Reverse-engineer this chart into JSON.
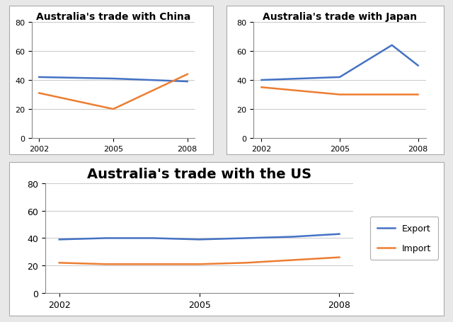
{
  "china": {
    "title": "Australia's trade with China",
    "years": [
      2002,
      2005,
      2008
    ],
    "export": [
      42,
      41,
      39
    ],
    "import": [
      31,
      20,
      44
    ],
    "export_color": "#4472C4",
    "import_color": "#ED7D31",
    "ylim": [
      0,
      80
    ],
    "yticks": [
      0,
      20,
      40,
      60,
      80
    ],
    "xticks": [
      2002,
      2005,
      2008
    ]
  },
  "japan": {
    "title": "Australia's trade with Japan",
    "years": [
      2002,
      2005,
      2007,
      2008
    ],
    "export": [
      40,
      42,
      64,
      50
    ],
    "import": [
      35,
      30,
      30,
      30
    ],
    "export_color": "#4472C4",
    "import_color": "#ED7D31",
    "ylim": [
      0,
      80
    ],
    "yticks": [
      0,
      20,
      40,
      60,
      80
    ],
    "xticks": [
      2002,
      2005,
      2008
    ]
  },
  "us": {
    "title": "Australia's trade with the US",
    "years": [
      2002,
      2003,
      2004,
      2005,
      2006,
      2007,
      2008
    ],
    "export": [
      39,
      40,
      40,
      39,
      40,
      41,
      43
    ],
    "import": [
      22,
      21,
      21,
      21,
      22,
      24,
      26
    ],
    "export_color": "#4472C4",
    "import_color": "#ED7D31",
    "ylim": [
      0,
      80
    ],
    "yticks": [
      0,
      20,
      40,
      60,
      80
    ],
    "xticks": [
      2002,
      2005,
      2008
    ],
    "legend_labels": [
      "Export",
      "Import"
    ]
  },
  "fig_bg": "#e8e8e8",
  "panel_bg": "#ffffff",
  "grid_color": "#c8c8c8",
  "line_width": 1.8,
  "small_title_fontsize": 10,
  "big_title_fontsize": 14,
  "tick_fontsize": 8,
  "legend_fontsize": 9
}
